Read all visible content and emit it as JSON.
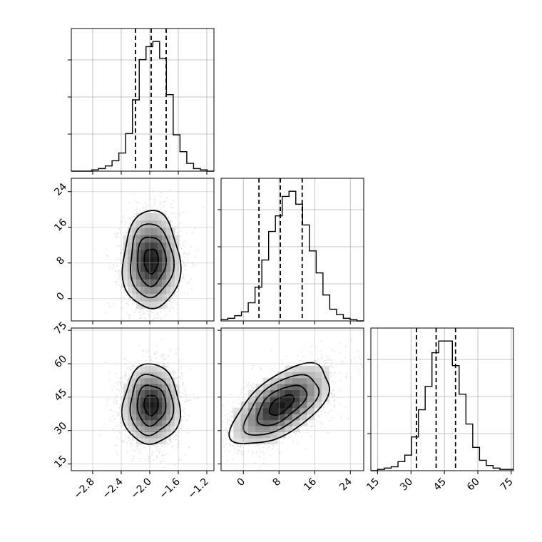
{
  "chart_data": {
    "type": "corner",
    "grid": true,
    "parameters": [
      {
        "index": 0,
        "mean": -1.98,
        "std": 0.2,
        "range": [
          -3.1,
          -1.1
        ],
        "ticks": [
          -2.8,
          -2.4,
          -2.0,
          -1.6,
          -1.2
        ],
        "tick_labels": [
          "−2.8",
          "−2.4",
          "−2.0",
          "−1.6",
          "−1.2"
        ],
        "quantiles": [
          -2.2,
          -1.98,
          -1.77
        ]
      },
      {
        "index": 1,
        "mean": 8.5,
        "std": 5.5,
        "range": [
          -5,
          27
        ],
        "ticks": [
          0,
          8,
          16,
          24
        ],
        "tick_labels": [
          "0",
          "8",
          "16",
          "24"
        ],
        "quantiles": [
          3.5,
          8.3,
          13.2
        ]
      },
      {
        "index": 2,
        "mean": 41.5,
        "std": 9.0,
        "range": [
          12,
          76
        ],
        "ticks": [
          15,
          30,
          45,
          60,
          75
        ],
        "tick_labels": [
          "15",
          "30",
          "45",
          "60",
          "75"
        ],
        "quantiles": [
          32.5,
          41.3,
          50.0
        ]
      }
    ],
    "histograms": [
      {
        "param": 0,
        "bin_range": [
          -3.1,
          -1.1
        ],
        "counts": [
          0,
          0,
          0,
          1,
          2,
          4,
          8,
          14,
          29,
          55,
          86,
          96,
          100,
          87,
          59,
          28,
          15,
          6,
          2,
          1,
          0
        ],
        "ylim": [
          0,
          110
        ]
      },
      {
        "param": 1,
        "bin_range": [
          -5,
          27
        ],
        "counts": [
          1,
          2,
          4,
          7,
          14,
          26,
          47,
          69,
          81,
          96,
          100,
          90,
          74,
          54,
          37,
          20,
          9,
          5,
          2,
          1,
          0
        ],
        "ylim": [
          0,
          110
        ]
      },
      {
        "param": 2,
        "bin_range": [
          12,
          76
        ],
        "counts": [
          0,
          1,
          2,
          3,
          7,
          12,
          26,
          47,
          65,
          91,
          100,
          100,
          81,
          59,
          36,
          18,
          8,
          4,
          2,
          1,
          1
        ],
        "ylim": [
          0,
          110
        ]
      }
    ],
    "pairs": [
      {
        "x_param": 0,
        "y_param": 1,
        "correlation": 0.0
      },
      {
        "x_param": 0,
        "y_param": 2,
        "correlation": 0.0
      },
      {
        "x_param": 1,
        "y_param": 2,
        "correlation": 0.6
      }
    ],
    "contour_levels_sigma": [
      0.5,
      1.0,
      1.5,
      2.0
    ]
  }
}
